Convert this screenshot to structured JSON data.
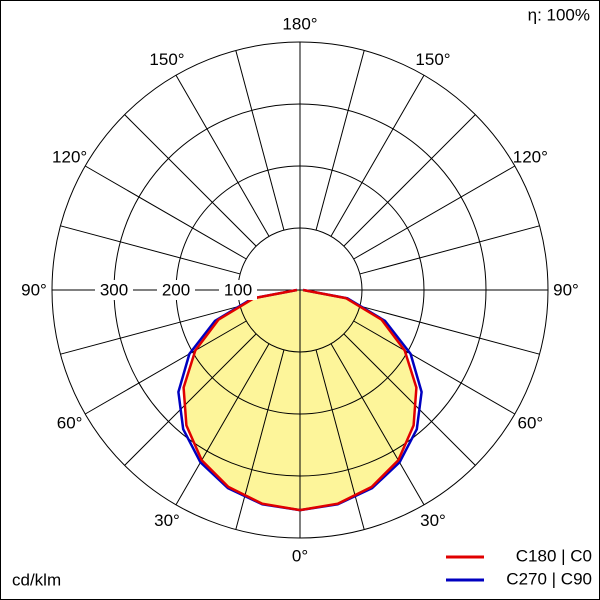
{
  "chart_data": {
    "type": "polar",
    "annotation": "η: 100%",
    "unit_label": "cd/klm",
    "rlim": [
      0,
      400
    ],
    "rticks": [
      100,
      200,
      300
    ],
    "angle_ticks": [
      {
        "value": 0,
        "label": "0°"
      },
      {
        "value": 30,
        "label": "30°"
      },
      {
        "value": 60,
        "label": "60°"
      },
      {
        "value": 90,
        "label": "90°"
      },
      {
        "value": 120,
        "label": "120°"
      },
      {
        "value": 150,
        "label": "150°"
      },
      {
        "value": 180,
        "label": "180°"
      }
    ],
    "fill_color": "#fdf59a",
    "angles": [
      0,
      10,
      20,
      30,
      40,
      50,
      60,
      70,
      80,
      90
    ],
    "series": [
      {
        "name": "C270 | C90",
        "color": "#0000c0",
        "values": [
          355,
          351,
          340,
          321,
          293,
          256,
          206,
          146,
          78,
          5
        ]
      },
      {
        "name": "C180 | C0",
        "color": "#e00000",
        "values": [
          355,
          350,
          338,
          317,
          285,
          245,
          195,
          140,
          75,
          5
        ]
      }
    ]
  }
}
